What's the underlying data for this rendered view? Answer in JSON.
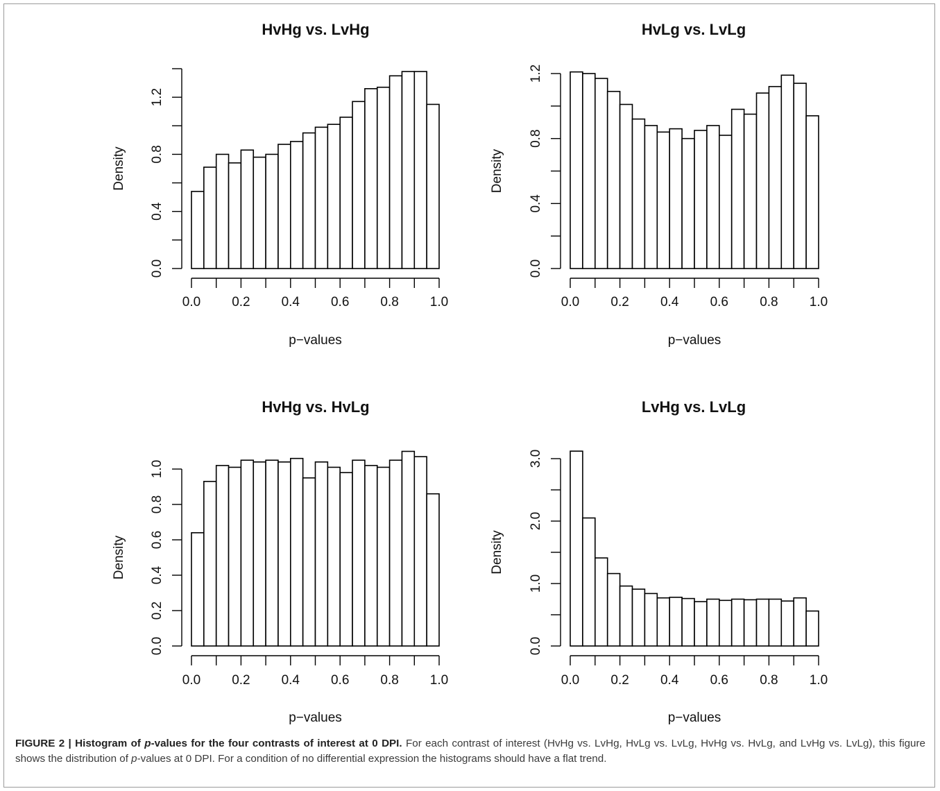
{
  "figure": {
    "caption_label": "FIGURE 2 |",
    "caption_title_pre": "Histogram of",
    "caption_title_p": "p",
    "caption_title_post": "-values for the four contrasts of interest at 0 DPI.",
    "caption_body_1": "For each contrast of interest (HvHg vs. LvHg, HvLg vs. LvLg, HvHg vs. HvLg, and LvHg vs. LvLg), this figure shows the distribution of",
    "caption_body_p": "p",
    "caption_body_2": "-values at 0 DPI. For a condition of no differential expression the histograms should have a flat trend."
  },
  "chart_data": [
    {
      "type": "bar",
      "title": "HvHg vs. LvHg",
      "xlabel": "p−values",
      "ylabel": "Density",
      "bin_width": 0.05,
      "x_start": 0.0,
      "xlim": [
        0,
        1
      ],
      "ylim": [
        0,
        1.4
      ],
      "xticks": [
        "0.0",
        "0.2",
        "0.4",
        "0.6",
        "0.8",
        "1.0"
      ],
      "yticks": [
        "0.0",
        "0.4",
        "0.8",
        "1.2"
      ],
      "ytick_values": [
        0,
        0.4,
        0.8,
        1.2
      ],
      "ytick_minor": [
        0.2,
        0.6,
        1.0,
        1.4
      ],
      "values": [
        0.54,
        0.71,
        0.8,
        0.74,
        0.83,
        0.78,
        0.8,
        0.87,
        0.89,
        0.95,
        0.99,
        1.01,
        1.06,
        1.17,
        1.26,
        1.27,
        1.35,
        1.38,
        1.38,
        1.15
      ]
    },
    {
      "type": "bar",
      "title": "HvLg vs. LvLg",
      "xlabel": "p−values",
      "ylabel": "Density",
      "bin_width": 0.05,
      "x_start": 0.0,
      "xlim": [
        0,
        1
      ],
      "ylim": [
        0,
        1.2
      ],
      "xticks": [
        "0.0",
        "0.2",
        "0.4",
        "0.6",
        "0.8",
        "1.0"
      ],
      "yticks": [
        "0.0",
        "0.4",
        "0.8",
        "1.2"
      ],
      "ytick_values": [
        0,
        0.4,
        0.8,
        1.2
      ],
      "ytick_minor": [
        0.2,
        0.6,
        1.0
      ],
      "values": [
        1.21,
        1.2,
        1.17,
        1.09,
        1.01,
        0.92,
        0.88,
        0.84,
        0.86,
        0.8,
        0.85,
        0.88,
        0.82,
        0.98,
        0.95,
        1.08,
        1.12,
        1.19,
        1.14,
        0.94
      ]
    },
    {
      "type": "bar",
      "title": "HvHg vs. HvLg",
      "xlabel": "p−values",
      "ylabel": "Density",
      "bin_width": 0.05,
      "x_start": 0.0,
      "xlim": [
        0,
        1
      ],
      "ylim": [
        0,
        1.0
      ],
      "xticks": [
        "0.0",
        "0.2",
        "0.4",
        "0.6",
        "0.8",
        "1.0"
      ],
      "yticks": [
        "0.0",
        "0.2",
        "0.4",
        "0.6",
        "0.8",
        "1.0"
      ],
      "ytick_values": [
        0,
        0.2,
        0.4,
        0.6,
        0.8,
        1.0
      ],
      "ytick_minor": [],
      "values": [
        0.64,
        0.93,
        1.02,
        1.01,
        1.05,
        1.04,
        1.05,
        1.04,
        1.06,
        0.95,
        1.04,
        1.01,
        0.98,
        1.05,
        1.02,
        1.01,
        1.05,
        1.1,
        1.07,
        0.86
      ]
    },
    {
      "type": "bar",
      "title": "LvHg vs. LvLg",
      "xlabel": "p−values",
      "ylabel": "Density",
      "bin_width": 0.05,
      "x_start": 0.0,
      "xlim": [
        0,
        1
      ],
      "ylim": [
        0,
        3.0
      ],
      "xticks": [
        "0.0",
        "0.2",
        "0.4",
        "0.6",
        "0.8",
        "1.0"
      ],
      "yticks": [
        "0.0",
        "1.0",
        "2.0",
        "3.0"
      ],
      "ytick_values": [
        0,
        1.0,
        2.0,
        3.0
      ],
      "ytick_minor": [
        0.5,
        1.5,
        2.5
      ],
      "values": [
        3.12,
        2.05,
        1.41,
        1.16,
        0.96,
        0.91,
        0.84,
        0.77,
        0.78,
        0.76,
        0.71,
        0.75,
        0.73,
        0.75,
        0.74,
        0.75,
        0.75,
        0.72,
        0.77,
        0.56
      ]
    }
  ]
}
